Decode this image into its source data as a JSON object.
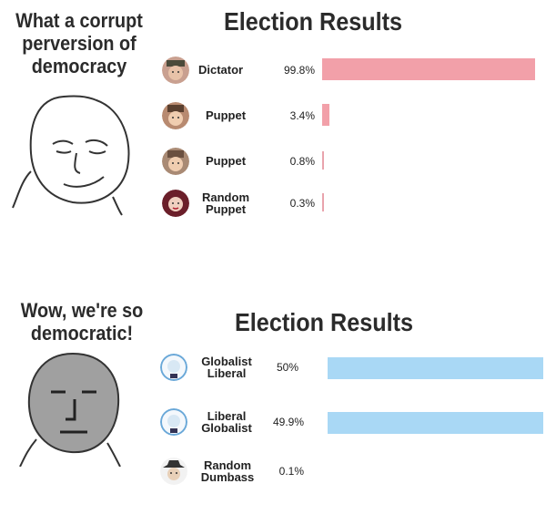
{
  "top": {
    "caption": "What a corrupt perversion of democracy",
    "title": "Election Results",
    "bar_color": "#f2a0a9",
    "rows": [
      {
        "name": "Dictator",
        "percent": "99.8%",
        "value": 99.8,
        "icon": "soldier-cap-icon"
      },
      {
        "name": "Puppet",
        "percent": "3.4%",
        "value": 3.4,
        "icon": "puppet-face-icon"
      },
      {
        "name": "Puppet",
        "percent": "0.8%",
        "value": 0.8,
        "icon": "puppet-face-icon"
      },
      {
        "name": "Random Puppet",
        "percent": "0.3%",
        "value": 0.3,
        "icon": "woman-face-icon"
      }
    ]
  },
  "bottom": {
    "caption": "Wow, we're so democratic!",
    "title": "Election Results",
    "bar_color": "#a9d8f5",
    "rows": [
      {
        "name": "Globalist Liberal",
        "percent": "50%",
        "value": 50,
        "icon": "blue-face-icon"
      },
      {
        "name": "Liberal Globalist",
        "percent": "49.9%",
        "value": 49.9,
        "icon": "blue-face-icon"
      },
      {
        "name": "Random Dumbass",
        "percent": "0.1%",
        "value": 0.1,
        "icon": "cowboy-face-icon"
      }
    ]
  }
}
